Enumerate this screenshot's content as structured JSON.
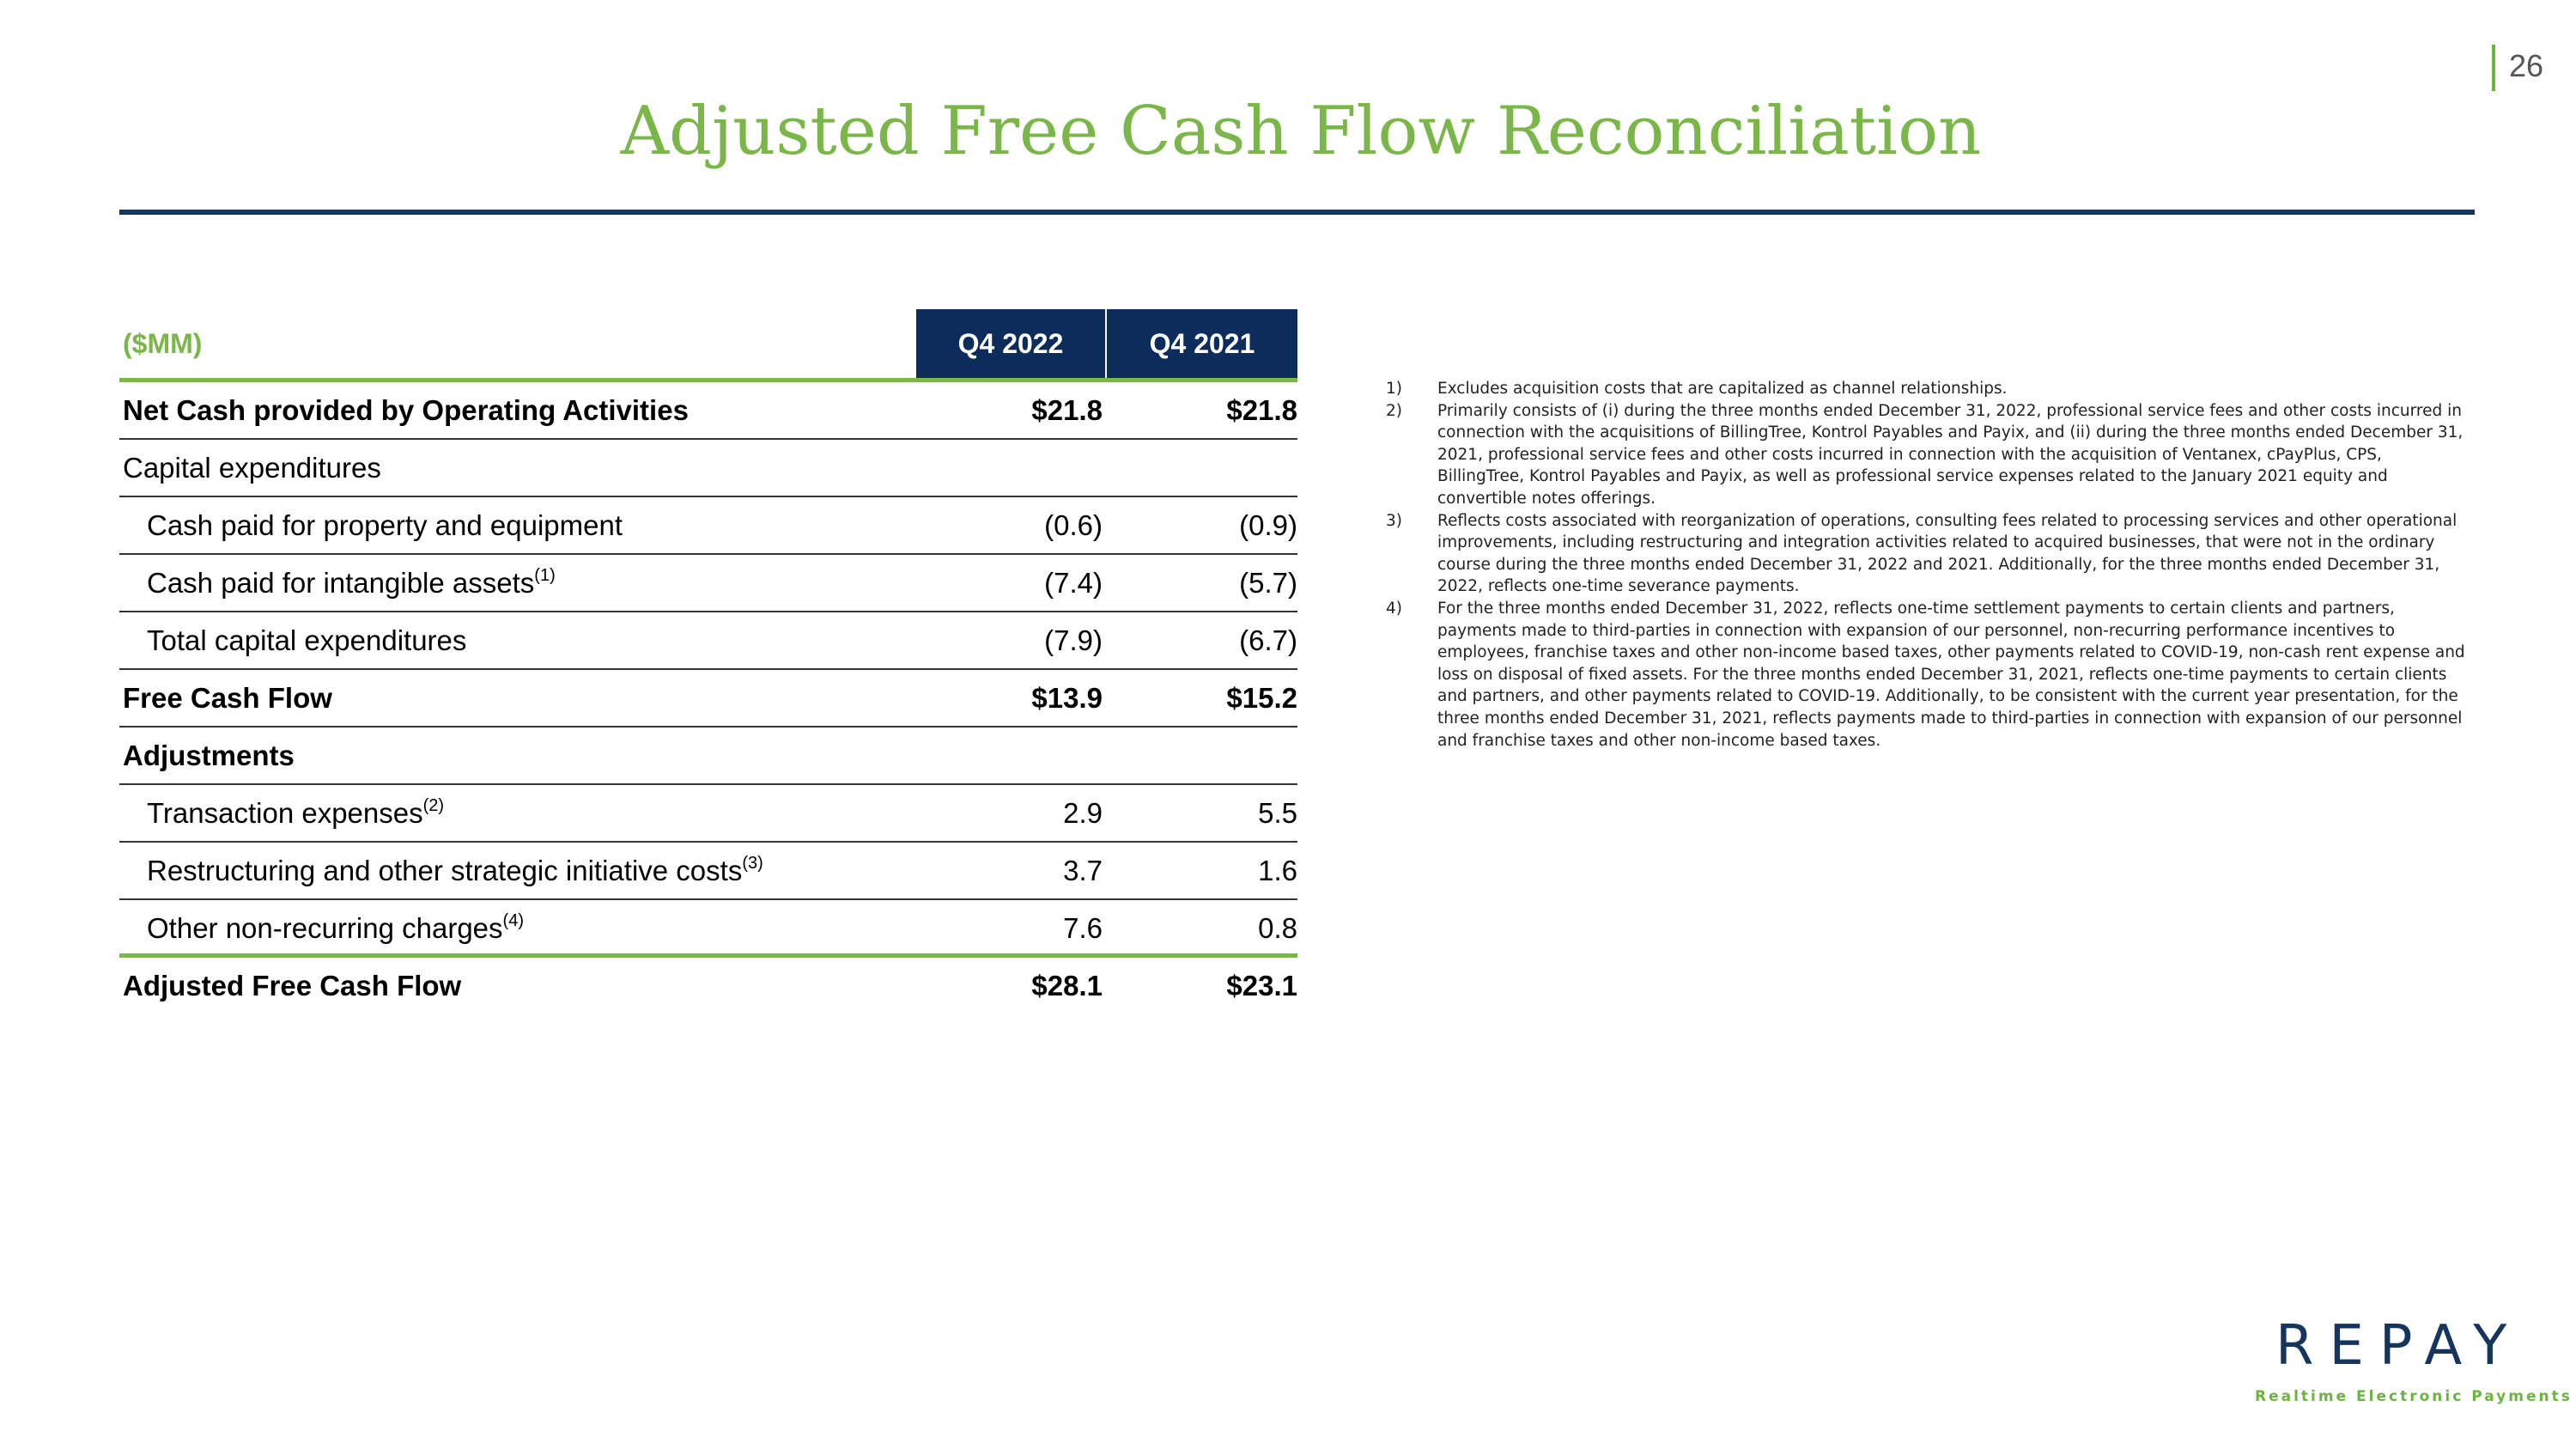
{
  "page_number": "26",
  "title": "Adjusted Free Cash Flow Reconciliation",
  "table": {
    "unit_label": "($MM)",
    "columns": [
      "Q4 2022",
      "Q4 2021"
    ],
    "rows": [
      {
        "label": "Net Cash provided by Operating Activities",
        "sup": "",
        "v1": "$21.8",
        "v2": "$21.8"
      },
      {
        "label": "Capital expenditures",
        "sup": "",
        "v1": "",
        "v2": ""
      },
      {
        "label": "Cash paid for property and equipment",
        "sup": "",
        "v1": "(0.6)",
        "v2": "(0.9)"
      },
      {
        "label": "Cash paid for intangible assets",
        "sup": "(1)",
        "v1": "(7.4)",
        "v2": "(5.7)"
      },
      {
        "label": "Total capital expenditures",
        "sup": "",
        "v1": "(7.9)",
        "v2": "(6.7)"
      },
      {
        "label": "Free Cash Flow",
        "sup": "",
        "v1": "$13.9",
        "v2": "$15.2"
      },
      {
        "label": "Adjustments",
        "sup": "",
        "v1": "",
        "v2": ""
      },
      {
        "label": "Transaction expenses",
        "sup": "(2)",
        "v1": "2.9",
        "v2": "5.5"
      },
      {
        "label": "Restructuring and other strategic initiative costs",
        "sup": "(3)",
        "v1": "3.7",
        "v2": "1.6"
      },
      {
        "label": "Other non-recurring charges",
        "sup": "(4)",
        "v1": "7.6",
        "v2": "0.8"
      },
      {
        "label": "Adjusted Free Cash Flow",
        "sup": "",
        "v1": "$28.1",
        "v2": "$23.1"
      }
    ]
  },
  "footnotes": [
    {
      "num": "1)",
      "text": "Excludes acquisition costs that are capitalized as channel relationships."
    },
    {
      "num": "2)",
      "text": "Primarily consists of (i) during the three months ended December 31, 2022, professional service fees and other costs incurred in connection with the acquisitions of BillingTree, Kontrol Payables and Payix, and (ii) during the three months ended December 31, 2021, professional service fees and other costs incurred in connection with the acquisition of Ventanex, cPayPlus, CPS, BillingTree, Kontrol Payables and Payix, as well as professional service expenses related to the January 2021 equity and convertible notes offerings."
    },
    {
      "num": "3)",
      "text": "Reflects costs associated with reorganization of operations, consulting fees related to processing services and other operational improvements, including restructuring and integration activities related to acquired businesses, that were not in the ordinary course during the three months ended December 31, 2022 and 2021. Additionally, for the three months ended December 31, 2022, reflects one-time severance payments."
    },
    {
      "num": "4)",
      "text": "For the three months ended December 31, 2022, reflects one-time settlement payments to certain clients and partners, payments made to third-parties in connection with expansion of our personnel, non-recurring performance incentives to employees, franchise taxes and other non-income based taxes, other payments related to COVID-19, non-cash rent expense and loss on disposal of fixed assets. For the three months ended December 31, 2021, reflects one-time payments to certain clients and partners, and other payments related to COVID-19. Additionally, to be consistent with the current year presentation, for the three months ended December 31, 2021, reflects payments made to third-parties in connection with expansion of our personnel and franchise taxes and other non-income based taxes."
    }
  ],
  "logo": {
    "word": "REPAY",
    "tagline": "Realtime Electronic Payments"
  },
  "colors": {
    "accent_green": "#7ab648",
    "navy": "#0c2d5c"
  }
}
